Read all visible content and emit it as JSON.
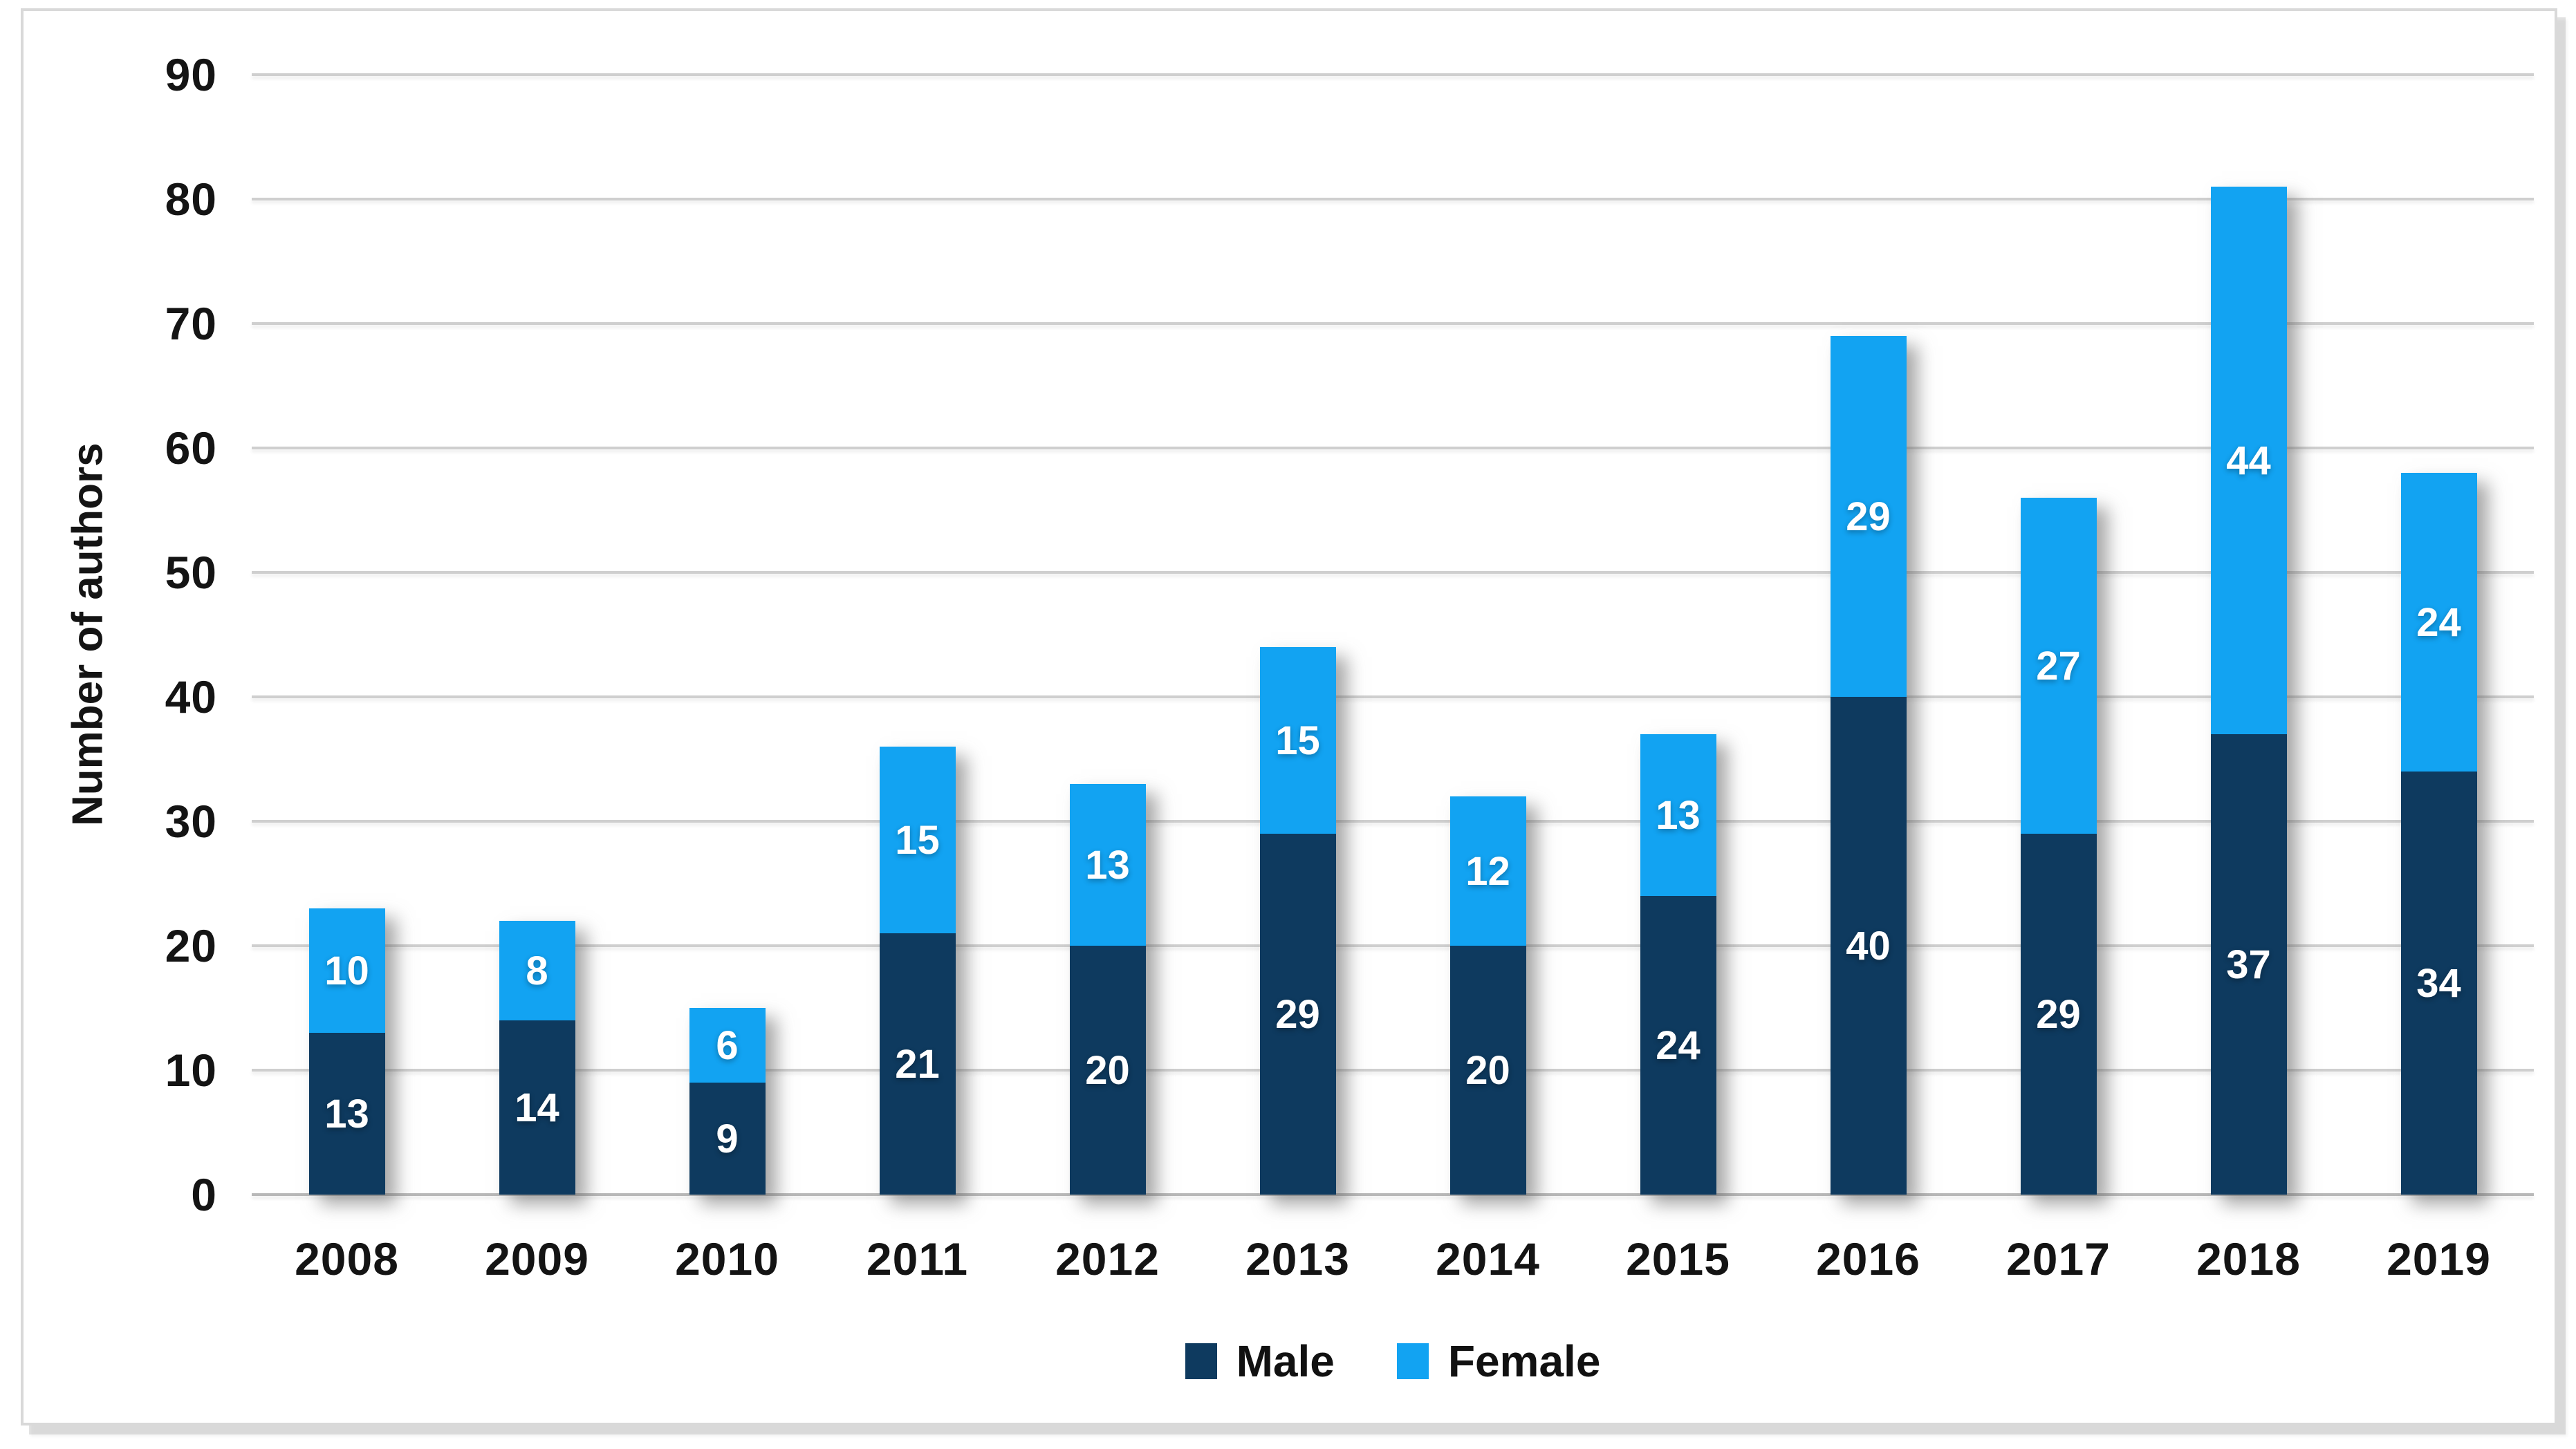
{
  "colors": {
    "male": "#0e3a5f",
    "female": "#12a3f2",
    "gridline": "#cfcfcf",
    "baseline": "#b8b8b8",
    "frame_border": "#d9d9d9",
    "data_label": "#ffffff"
  },
  "chart_data": {
    "type": "bar",
    "stacked": true,
    "title": "",
    "xlabel": "",
    "ylabel": "Number of authors",
    "categories": [
      "2008",
      "2009",
      "2010",
      "2011",
      "2012",
      "2013",
      "2014",
      "2015",
      "2016",
      "2017",
      "2018",
      "2019"
    ],
    "series": [
      {
        "name": "Male",
        "color": "#0e3a5f",
        "values": [
          13,
          14,
          9,
          21,
          20,
          29,
          20,
          24,
          40,
          29,
          37,
          34
        ]
      },
      {
        "name": "Female",
        "color": "#12a3f2",
        "values": [
          10,
          8,
          6,
          15,
          13,
          15,
          12,
          13,
          29,
          27,
          44,
          24
        ]
      }
    ],
    "totals": [
      23,
      22,
      15,
      36,
      33,
      44,
      32,
      37,
      69,
      56,
      81,
      58
    ],
    "ylim": [
      0,
      90
    ],
    "ytick_step": 10,
    "ytick_labels": [
      "0",
      "10",
      "20",
      "30",
      "40",
      "50",
      "60",
      "70",
      "80",
      "90"
    ],
    "grid": "horizontal",
    "legend_position": "bottom",
    "data_labels": "inside-center"
  }
}
